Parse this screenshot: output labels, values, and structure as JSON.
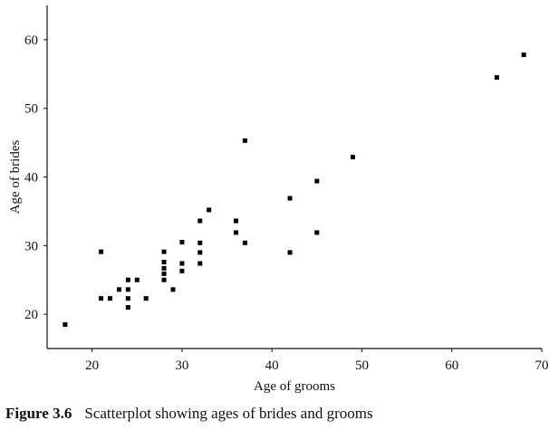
{
  "chart_data": {
    "type": "scatter",
    "xlabel": "Age of grooms",
    "ylabel": "Age of brides",
    "xlim": [
      15,
      70
    ],
    "ylim": [
      15,
      65
    ],
    "xticks": [
      20,
      30,
      40,
      50,
      60,
      70
    ],
    "yticks": [
      20,
      30,
      40,
      50,
      60
    ],
    "grid": false,
    "points": [
      {
        "x": 17,
        "y": 18.5
      },
      {
        "x": 21,
        "y": 22.3
      },
      {
        "x": 21,
        "y": 29.1
      },
      {
        "x": 22,
        "y": 22.3
      },
      {
        "x": 23,
        "y": 23.6
      },
      {
        "x": 24,
        "y": 21.0
      },
      {
        "x": 24,
        "y": 22.3
      },
      {
        "x": 24,
        "y": 23.6
      },
      {
        "x": 24,
        "y": 25.0
      },
      {
        "x": 25,
        "y": 25.0
      },
      {
        "x": 26,
        "y": 22.3
      },
      {
        "x": 28,
        "y": 25.0
      },
      {
        "x": 28,
        "y": 25.9
      },
      {
        "x": 28,
        "y": 26.7
      },
      {
        "x": 28,
        "y": 27.6
      },
      {
        "x": 28,
        "y": 29.1
      },
      {
        "x": 29,
        "y": 23.6
      },
      {
        "x": 30,
        "y": 26.3
      },
      {
        "x": 30,
        "y": 27.4
      },
      {
        "x": 30,
        "y": 30.5
      },
      {
        "x": 32,
        "y": 27.4
      },
      {
        "x": 32,
        "y": 29.0
      },
      {
        "x": 32,
        "y": 30.4
      },
      {
        "x": 32,
        "y": 33.6
      },
      {
        "x": 33,
        "y": 35.2
      },
      {
        "x": 36,
        "y": 31.9
      },
      {
        "x": 36,
        "y": 33.6
      },
      {
        "x": 37,
        "y": 30.4
      },
      {
        "x": 37,
        "y": 45.3
      },
      {
        "x": 42,
        "y": 29.0
      },
      {
        "x": 42,
        "y": 36.9
      },
      {
        "x": 45,
        "y": 31.9
      },
      {
        "x": 45,
        "y": 39.4
      },
      {
        "x": 49,
        "y": 42.9
      },
      {
        "x": 65,
        "y": 54.5
      },
      {
        "x": 68,
        "y": 57.8
      }
    ]
  },
  "caption": {
    "number": "Figure 3.6",
    "text": "Scatterplot showing ages of brides and grooms"
  }
}
